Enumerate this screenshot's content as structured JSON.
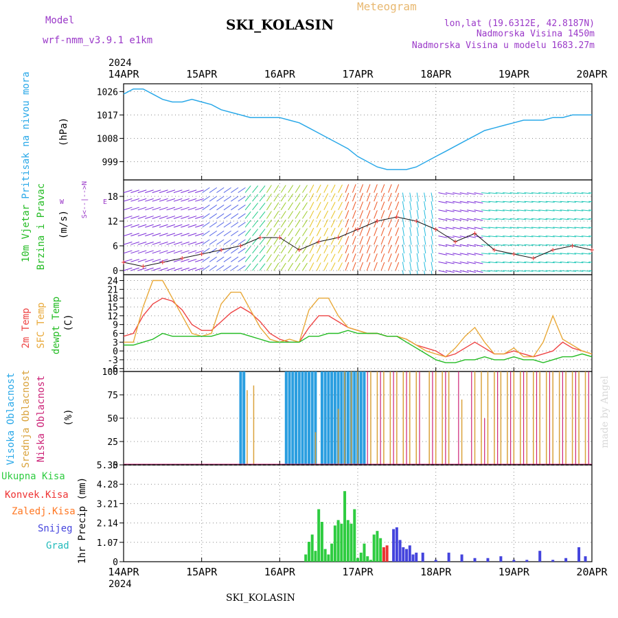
{
  "header": {
    "model_label": "Model",
    "model_value": "wrf-nmm_v3.9.1  e1km",
    "station": "SKI_KOLASIN",
    "product": "Meteogram",
    "lonlat": "lon,lat (19.6312E, 42.8187N)",
    "elevation": "Nadmorska Visina 1450m",
    "model_elevation": "Nadmorska Visina u modelu 1683.27m"
  },
  "footer": {
    "station": "SKI_KOLASIN",
    "credit": "made by Angel"
  },
  "time_axis": {
    "year": "2024",
    "labels": [
      "14APR",
      "15APR",
      "16APR",
      "17APR",
      "18APR",
      "19APR",
      "20APR"
    ]
  },
  "colors": {
    "pressure": "#29a8e8",
    "temp2m": "#ee4444",
    "sfc_temp": "#e8a838",
    "dewpt": "#22bb22",
    "cloud_high": "#2a9ee0",
    "cloud_mid": "#d9a23a",
    "cloud_low": "#cc2277",
    "precip_total": "#2ecc40",
    "precip_conv": "#ee3333",
    "precip_frozen": "#ff7722",
    "precip_snow": "#4444dd",
    "precip_graupel": "#22bbbb"
  },
  "panels": {
    "pressure": {
      "label": "Pritisak na nivou mora",
      "unit": "(hPa)"
    },
    "wind": {
      "label_a": "10m Vjetar",
      "label_b": "Brzina i Pravac",
      "unit": "(m/s)",
      "compass_ns": "S<--|-->N",
      "compass_w": "W",
      "compass_e": "E"
    },
    "temperature": {
      "label_a": "2m Temp",
      "label_b": "SFC Temp",
      "label_c": "dewpt Temp",
      "unit": "(C)"
    },
    "cloud": {
      "label_a": "Visoka Oblacnost",
      "label_b": "Srednja Oblacnost",
      "label_c": "Niska Oblacnost",
      "unit": "(%)"
    },
    "precip": {
      "unit": "1hr Precip (mm)",
      "legend": [
        "Ukupna Kisa",
        "Konvek.Kisa",
        "Zaledj.Kisa",
        "Snijeg",
        "Grad"
      ]
    }
  },
  "chart_data": [
    {
      "type": "line",
      "panel": "pressure",
      "ylabel": "Pritisak na nivou mora (hPa)",
      "ylim": [
        992,
        1029
      ],
      "yticks": [
        999,
        1008,
        1017,
        1026
      ],
      "grid": true,
      "x_hours": [
        0,
        3,
        6,
        9,
        12,
        15,
        18,
        21,
        24,
        27,
        30,
        33,
        36,
        39,
        42,
        45,
        48,
        51,
        54,
        57,
        60,
        63,
        66,
        69,
        72,
        75,
        78,
        81,
        84,
        87,
        90,
        93,
        96,
        99,
        102,
        105,
        108,
        111,
        114,
        117,
        120,
        123,
        126,
        129,
        132,
        135,
        138,
        141,
        144
      ],
      "series": [
        {
          "name": "Pritisak na nivou mora",
          "values": [
            1025,
            1027,
            1027,
            1025,
            1023,
            1022,
            1022,
            1023,
            1022,
            1021,
            1019,
            1018,
            1017,
            1016,
            1016,
            1016,
            1016,
            1015,
            1014,
            1012,
            1010,
            1008,
            1006,
            1004,
            1001,
            999,
            997,
            996,
            996,
            996,
            997,
            999,
            1001,
            1003,
            1005,
            1007,
            1009,
            1011,
            1012,
            1013,
            1014,
            1015,
            1015,
            1015,
            1016,
            1016,
            1017,
            1017,
            1017
          ]
        }
      ]
    },
    {
      "type": "wind",
      "panel": "wind",
      "ylabel": "10m Vjetar Brzina i Pravac (m/s)",
      "ylim": [
        -1,
        22
      ],
      "yticks": [
        0,
        6,
        12,
        18
      ],
      "grid": true,
      "x_hours": [
        0,
        6,
        12,
        18,
        24,
        30,
        36,
        42,
        48,
        54,
        60,
        66,
        72,
        78,
        84,
        90,
        96,
        102,
        108,
        114,
        120,
        126,
        132,
        138,
        144
      ],
      "series": [
        {
          "name": "speed",
          "values": [
            2,
            1,
            2,
            3,
            4,
            5,
            6,
            8,
            8,
            5,
            7,
            8,
            10,
            12,
            13,
            12,
            10,
            7,
            9,
            5,
            4,
            3,
            5,
            6,
            5
          ]
        }
      ]
    },
    {
      "type": "line",
      "panel": "temperature",
      "ylabel": "Temp (C)",
      "ylim": [
        -7,
        26
      ],
      "yticks": [
        -6,
        -3,
        0,
        3,
        6,
        9,
        12,
        15,
        18,
        21,
        24
      ],
      "grid": true,
      "x_hours": [
        0,
        3,
        6,
        9,
        12,
        15,
        18,
        21,
        24,
        27,
        30,
        33,
        36,
        39,
        42,
        45,
        48,
        51,
        54,
        57,
        60,
        63,
        66,
        69,
        72,
        75,
        78,
        81,
        84,
        87,
        90,
        93,
        96,
        99,
        102,
        105,
        108,
        111,
        114,
        117,
        120,
        123,
        126,
        129,
        132,
        135,
        138,
        141,
        144
      ],
      "series": [
        {
          "name": "2m Temp",
          "values": [
            5,
            6,
            12,
            16,
            18,
            17,
            14,
            9,
            7,
            7,
            10,
            13,
            15,
            13,
            10,
            6,
            4,
            3,
            3,
            8,
            12,
            12,
            10,
            8,
            7,
            6,
            6,
            5,
            5,
            4,
            2,
            1,
            0,
            -2,
            -1,
            1,
            3,
            1,
            -1,
            -1,
            0,
            -1,
            -2,
            -1,
            0,
            3,
            1,
            0,
            -1
          ]
        },
        {
          "name": "SFC Temp",
          "values": [
            3,
            3,
            15,
            24,
            24,
            18,
            12,
            6,
            5,
            6,
            16,
            20,
            20,
            14,
            8,
            4,
            3,
            4,
            3,
            14,
            18,
            18,
            12,
            8,
            7,
            6,
            6,
            5,
            5,
            4,
            2,
            0,
            -1,
            -2,
            1,
            5,
            8,
            3,
            -1,
            -1,
            1,
            -2,
            -2,
            3,
            12,
            4,
            2,
            0,
            -1
          ]
        },
        {
          "name": "dewpt Temp",
          "values": [
            2,
            2,
            3,
            4,
            6,
            5,
            5,
            5,
            5,
            5,
            6,
            6,
            6,
            5,
            4,
            3,
            3,
            3,
            3,
            5,
            5,
            6,
            6,
            7,
            6,
            6,
            6,
            5,
            5,
            3,
            1,
            -1,
            -3,
            -4,
            -4,
            -3,
            -3,
            -2,
            -3,
            -3,
            -2,
            -3,
            -3,
            -4,
            -3,
            -2,
            -2,
            -1,
            -2
          ]
        }
      ]
    },
    {
      "type": "bar",
      "panel": "cloud",
      "ylabel": "Oblacnost (%)",
      "ylim": [
        0,
        100
      ],
      "yticks": [
        0,
        25,
        50,
        75,
        100
      ],
      "grid": true,
      "series": [
        {
          "name": "Visoka Oblacnost",
          "x_hours": [
            36,
            37,
            50,
            51,
            52,
            53,
            54,
            55,
            56,
            57,
            58,
            59,
            61,
            62,
            63,
            64,
            65,
            66,
            67,
            68,
            69,
            70,
            71,
            72,
            73,
            74
          ],
          "values": [
            100,
            100,
            100,
            100,
            100,
            100,
            100,
            100,
            100,
            100,
            100,
            100,
            100,
            100,
            100,
            100,
            100,
            100,
            100,
            100,
            100,
            100,
            100,
            100,
            100,
            100
          ]
        },
        {
          "name": "Srednja Oblacnost",
          "x_hours": [
            38,
            40,
            59,
            66,
            68,
            70,
            72,
            76,
            78,
            80,
            82,
            84,
            86,
            88,
            90,
            94,
            96,
            98,
            100,
            104,
            108,
            110,
            112,
            114,
            116,
            118,
            120,
            122,
            124,
            126,
            128,
            130,
            132,
            134,
            136,
            138,
            140,
            142
          ],
          "values": [
            80,
            85,
            35,
            60,
            100,
            100,
            100,
            100,
            100,
            100,
            100,
            100,
            100,
            100,
            100,
            100,
            100,
            100,
            100,
            70,
            100,
            100,
            100,
            100,
            100,
            100,
            100,
            100,
            100,
            100,
            100,
            100,
            100,
            100,
            100,
            100,
            100,
            100
          ]
        },
        {
          "name": "Niska Oblacnost",
          "x_hours": [
            75,
            79,
            83,
            87,
            91,
            95,
            99,
            103,
            107,
            111,
            115,
            119,
            123,
            127,
            131,
            135,
            139,
            143
          ],
          "values": [
            100,
            100,
            100,
            100,
            100,
            100,
            100,
            100,
            100,
            50,
            100,
            100,
            100,
            100,
            100,
            100,
            100,
            100
          ]
        }
      ]
    },
    {
      "type": "bar",
      "panel": "precip",
      "ylabel": "1hr Precip (mm)",
      "ylim": [
        0,
        5.35
      ],
      "yticks": [
        0,
        1.07,
        2.14,
        3.21,
        4.28,
        5.35
      ],
      "grid": true,
      "series": [
        {
          "name": "Ukupna Kisa",
          "x_hours": [
            56,
            57,
            58,
            59,
            60,
            61,
            62,
            63,
            64,
            65,
            66,
            67,
            68,
            69,
            70,
            71,
            72,
            73,
            74,
            75,
            76,
            77,
            78,
            79,
            80
          ],
          "values": [
            0.4,
            1.1,
            1.5,
            0.6,
            2.9,
            2.2,
            0.7,
            0.4,
            1.0,
            2.0,
            2.3,
            2.1,
            3.9,
            2.3,
            2.1,
            2.9,
            0.2,
            0.5,
            1.0,
            0.3,
            0.1,
            1.5,
            1.7,
            1.3,
            0.6
          ]
        },
        {
          "name": "Konvek.Kisa",
          "x_hours": [
            80,
            81
          ],
          "values": [
            0.8,
            0.9
          ]
        },
        {
          "name": "Snijeg",
          "x_hours": [
            83,
            84,
            85,
            86,
            87,
            88,
            89,
            90,
            92,
            96,
            100,
            104,
            108,
            112,
            116,
            120,
            124,
            128,
            132,
            136,
            140,
            142
          ],
          "values": [
            1.8,
            1.9,
            1.2,
            0.8,
            0.7,
            0.9,
            0.4,
            0.5,
            0.5,
            0.1,
            0.5,
            0.4,
            0.2,
            0.2,
            0.3,
            0.1,
            0.1,
            0.6,
            0.1,
            0.2,
            0.8,
            0.3
          ]
        }
      ]
    }
  ]
}
